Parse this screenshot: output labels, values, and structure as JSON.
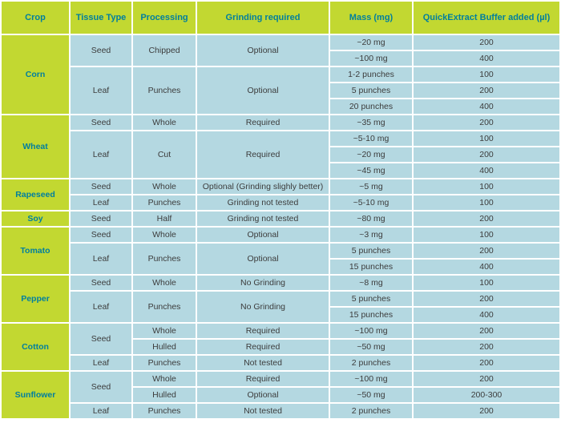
{
  "colors": {
    "header_bg": "#c2d831",
    "header_text": "#007f9e",
    "cell_bg": "#b4d8e1",
    "cell_text": "#3c3c3c",
    "gridline": "#ffffff"
  },
  "table": {
    "columns": [
      {
        "id": "crop",
        "label": "Crop"
      },
      {
        "id": "tissue",
        "label": "Tissue Type"
      },
      {
        "id": "processing",
        "label": "Processing"
      },
      {
        "id": "grinding",
        "label": "Grinding required"
      },
      {
        "id": "mass",
        "label": "Mass (mg)"
      },
      {
        "id": "buffer",
        "label": "QuickExtract Buffer added (µl)"
      }
    ],
    "rows": [
      {
        "cells": [
          {
            "col": "crop",
            "text": "Corn",
            "rowspan": 5
          },
          {
            "col": "tissue",
            "text": "Seed",
            "rowspan": 2
          },
          {
            "col": "processing",
            "text": "Chipped",
            "rowspan": 2
          },
          {
            "col": "grinding",
            "text": "Optional",
            "rowspan": 2
          },
          {
            "col": "mass",
            "text": "~20 mg"
          },
          {
            "col": "buffer",
            "text": "200"
          }
        ]
      },
      {
        "cells": [
          {
            "col": "mass",
            "text": "~100 mg"
          },
          {
            "col": "buffer",
            "text": "400"
          }
        ]
      },
      {
        "cells": [
          {
            "col": "tissue",
            "text": "Leaf",
            "rowspan": 3
          },
          {
            "col": "processing",
            "text": "Punches",
            "rowspan": 3
          },
          {
            "col": "grinding",
            "text": "Optional",
            "rowspan": 3
          },
          {
            "col": "mass",
            "text": "1-2 punches"
          },
          {
            "col": "buffer",
            "text": "100"
          }
        ]
      },
      {
        "cells": [
          {
            "col": "mass",
            "text": "5 punches"
          },
          {
            "col": "buffer",
            "text": "200"
          }
        ]
      },
      {
        "cells": [
          {
            "col": "mass",
            "text": "20 punches"
          },
          {
            "col": "buffer",
            "text": "400"
          }
        ]
      },
      {
        "cells": [
          {
            "col": "crop",
            "text": "Wheat",
            "rowspan": 4
          },
          {
            "col": "tissue",
            "text": "Seed"
          },
          {
            "col": "processing",
            "text": "Whole"
          },
          {
            "col": "grinding",
            "text": "Required"
          },
          {
            "col": "mass",
            "text": "~35 mg"
          },
          {
            "col": "buffer",
            "text": "200"
          }
        ]
      },
      {
        "cells": [
          {
            "col": "tissue",
            "text": "Leaf",
            "rowspan": 3
          },
          {
            "col": "processing",
            "text": "Cut",
            "rowspan": 3
          },
          {
            "col": "grinding",
            "text": "Required",
            "rowspan": 3
          },
          {
            "col": "mass",
            "text": "~5-10 mg"
          },
          {
            "col": "buffer",
            "text": "100"
          }
        ]
      },
      {
        "cells": [
          {
            "col": "mass",
            "text": "~20 mg"
          },
          {
            "col": "buffer",
            "text": "200"
          }
        ]
      },
      {
        "cells": [
          {
            "col": "mass",
            "text": "~45 mg"
          },
          {
            "col": "buffer",
            "text": "400"
          }
        ]
      },
      {
        "cells": [
          {
            "col": "crop",
            "text": "Rapeseed",
            "rowspan": 2
          },
          {
            "col": "tissue",
            "text": "Seed"
          },
          {
            "col": "processing",
            "text": "Whole"
          },
          {
            "col": "grinding",
            "text": "Optional (Grinding slighly better)"
          },
          {
            "col": "mass",
            "text": "~5 mg"
          },
          {
            "col": "buffer",
            "text": "100"
          }
        ]
      },
      {
        "cells": [
          {
            "col": "tissue",
            "text": "Leaf"
          },
          {
            "col": "processing",
            "text": "Punches"
          },
          {
            "col": "grinding",
            "text": "Grinding not tested"
          },
          {
            "col": "mass",
            "text": "~5-10 mg"
          },
          {
            "col": "buffer",
            "text": "100"
          }
        ]
      },
      {
        "cells": [
          {
            "col": "crop",
            "text": "Soy"
          },
          {
            "col": "tissue",
            "text": "Seed"
          },
          {
            "col": "processing",
            "text": "Half"
          },
          {
            "col": "grinding",
            "text": "Grinding not tested"
          },
          {
            "col": "mass",
            "text": "~80 mg"
          },
          {
            "col": "buffer",
            "text": "200"
          }
        ]
      },
      {
        "cells": [
          {
            "col": "crop",
            "text": "Tomato",
            "rowspan": 3
          },
          {
            "col": "tissue",
            "text": "Seed"
          },
          {
            "col": "processing",
            "text": "Whole"
          },
          {
            "col": "grinding",
            "text": "Optional"
          },
          {
            "col": "mass",
            "text": "~3 mg"
          },
          {
            "col": "buffer",
            "text": "100"
          }
        ]
      },
      {
        "cells": [
          {
            "col": "tissue",
            "text": "Leaf",
            "rowspan": 2
          },
          {
            "col": "processing",
            "text": "Punches",
            "rowspan": 2
          },
          {
            "col": "grinding",
            "text": "Optional",
            "rowspan": 2
          },
          {
            "col": "mass",
            "text": "5 punches"
          },
          {
            "col": "buffer",
            "text": "200"
          }
        ]
      },
      {
        "cells": [
          {
            "col": "mass",
            "text": "15 punches"
          },
          {
            "col": "buffer",
            "text": "400"
          }
        ]
      },
      {
        "cells": [
          {
            "col": "crop",
            "text": "Pepper",
            "rowspan": 3
          },
          {
            "col": "tissue",
            "text": "Seed"
          },
          {
            "col": "processing",
            "text": "Whole"
          },
          {
            "col": "grinding",
            "text": "No Grinding"
          },
          {
            "col": "mass",
            "text": "~8 mg"
          },
          {
            "col": "buffer",
            "text": "100"
          }
        ]
      },
      {
        "cells": [
          {
            "col": "tissue",
            "text": "Leaf",
            "rowspan": 2
          },
          {
            "col": "processing",
            "text": "Punches",
            "rowspan": 2
          },
          {
            "col": "grinding",
            "text": "No Grinding",
            "rowspan": 2
          },
          {
            "col": "mass",
            "text": "5 punches"
          },
          {
            "col": "buffer",
            "text": "200"
          }
        ]
      },
      {
        "cells": [
          {
            "col": "mass",
            "text": "15 punches"
          },
          {
            "col": "buffer",
            "text": "400"
          }
        ]
      },
      {
        "cells": [
          {
            "col": "crop",
            "text": "Cotton",
            "rowspan": 3
          },
          {
            "col": "tissue",
            "text": "Seed",
            "rowspan": 2
          },
          {
            "col": "processing",
            "text": "Whole"
          },
          {
            "col": "grinding",
            "text": "Required"
          },
          {
            "col": "mass",
            "text": "~100 mg"
          },
          {
            "col": "buffer",
            "text": "200"
          }
        ]
      },
      {
        "cells": [
          {
            "col": "processing",
            "text": "Hulled"
          },
          {
            "col": "grinding",
            "text": "Required"
          },
          {
            "col": "mass",
            "text": "~50 mg"
          },
          {
            "col": "buffer",
            "text": "200"
          }
        ]
      },
      {
        "cells": [
          {
            "col": "tissue",
            "text": "Leaf"
          },
          {
            "col": "processing",
            "text": "Punches"
          },
          {
            "col": "grinding",
            "text": "Not tested"
          },
          {
            "col": "mass",
            "text": "2 punches"
          },
          {
            "col": "buffer",
            "text": "200"
          }
        ]
      },
      {
        "cells": [
          {
            "col": "crop",
            "text": "Sunflower",
            "rowspan": 3
          },
          {
            "col": "tissue",
            "text": "Seed",
            "rowspan": 2
          },
          {
            "col": "processing",
            "text": "Whole"
          },
          {
            "col": "grinding",
            "text": "Required"
          },
          {
            "col": "mass",
            "text": "~100 mg"
          },
          {
            "col": "buffer",
            "text": "200"
          }
        ]
      },
      {
        "cells": [
          {
            "col": "processing",
            "text": "Hulled"
          },
          {
            "col": "grinding",
            "text": "Optional"
          },
          {
            "col": "mass",
            "text": "~50 mg"
          },
          {
            "col": "buffer",
            "text": "200-300"
          }
        ]
      },
      {
        "cells": [
          {
            "col": "tissue",
            "text": "Leaf"
          },
          {
            "col": "processing",
            "text": "Punches"
          },
          {
            "col": "grinding",
            "text": "Not tested"
          },
          {
            "col": "mass",
            "text": "2 punches"
          },
          {
            "col": "buffer",
            "text": "200"
          }
        ]
      }
    ]
  }
}
